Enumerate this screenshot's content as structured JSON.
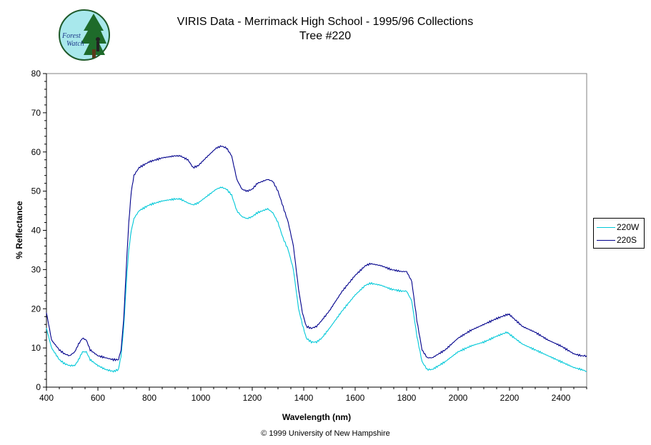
{
  "logo": {
    "text_line1": "Forest",
    "text_line2": "Watch"
  },
  "chart_data": {
    "type": "line",
    "title": "VIRIS Data - Merrimack High School - 1995/96 Collections",
    "subtitle": "Tree #220",
    "xlabel": "Wavelength (nm)",
    "ylabel": "% Reflectance",
    "xlim": [
      400,
      2500
    ],
    "ylim": [
      0,
      80
    ],
    "xticks": [
      400,
      600,
      800,
      1000,
      1200,
      1400,
      1600,
      1800,
      2000,
      2200,
      2400
    ],
    "yticks": [
      0,
      10,
      20,
      30,
      40,
      50,
      60,
      70,
      80
    ],
    "grid": false,
    "legend": "right",
    "series": [
      {
        "name": "220W",
        "color": "#00c8d8",
        "x": [
          400,
          420,
          450,
          470,
          490,
          510,
          525,
          540,
          555,
          570,
          600,
          630,
          660,
          680,
          690,
          700,
          710,
          720,
          730,
          740,
          760,
          800,
          850,
          900,
          920,
          950,
          970,
          990,
          1020,
          1060,
          1080,
          1100,
          1120,
          1140,
          1160,
          1180,
          1200,
          1220,
          1240,
          1260,
          1280,
          1300,
          1320,
          1340,
          1360,
          1380,
          1395,
          1410,
          1430,
          1450,
          1470,
          1500,
          1550,
          1600,
          1640,
          1660,
          1700,
          1740,
          1780,
          1800,
          1820,
          1840,
          1860,
          1880,
          1900,
          1950,
          2000,
          2050,
          2100,
          2150,
          2190,
          2200,
          2250,
          2300,
          2350,
          2400,
          2450,
          2480,
          2500
        ],
        "values": [
          15,
          10,
          7,
          6,
          5.5,
          5.5,
          7,
          9,
          9,
          7,
          5.5,
          4.5,
          4,
          4.5,
          8,
          15,
          26,
          35,
          40,
          43,
          45,
          46.5,
          47.5,
          48,
          48,
          47,
          46.5,
          47,
          48.5,
          50.5,
          51,
          50.5,
          49,
          45,
          43.5,
          43,
          43.5,
          44.5,
          45,
          45.5,
          44.5,
          42,
          38,
          35,
          30,
          20,
          16,
          12.5,
          11.5,
          11.5,
          12.5,
          15,
          19.5,
          23.5,
          26,
          26.5,
          26,
          25,
          24.5,
          24.5,
          22,
          13,
          6.5,
          4.5,
          4.5,
          6.5,
          9,
          10.5,
          11.5,
          13,
          14,
          13.5,
          11,
          9.5,
          8,
          6.5,
          5,
          4.5,
          4
        ]
      },
      {
        "name": "220S",
        "color": "#00008b",
        "x": [
          400,
          420,
          450,
          470,
          490,
          510,
          525,
          540,
          555,
          570,
          600,
          630,
          660,
          680,
          690,
          700,
          710,
          720,
          730,
          740,
          760,
          800,
          850,
          900,
          920,
          950,
          970,
          990,
          1020,
          1060,
          1080,
          1100,
          1120,
          1140,
          1160,
          1180,
          1200,
          1220,
          1240,
          1260,
          1280,
          1300,
          1320,
          1340,
          1360,
          1380,
          1395,
          1410,
          1430,
          1450,
          1470,
          1500,
          1550,
          1600,
          1640,
          1660,
          1700,
          1740,
          1780,
          1800,
          1820,
          1840,
          1860,
          1880,
          1900,
          1950,
          2000,
          2050,
          2100,
          2150,
          2190,
          2200,
          2250,
          2300,
          2350,
          2400,
          2450,
          2480,
          2500
        ],
        "values": [
          19,
          12,
          9.5,
          8.5,
          8,
          9,
          11,
          12.5,
          12,
          9.5,
          8,
          7.5,
          7,
          7,
          9.5,
          17,
          30,
          42,
          50,
          54,
          56,
          57.5,
          58.5,
          59,
          59,
          58,
          56,
          56.5,
          58.5,
          61,
          61.5,
          61,
          59,
          53,
          50.5,
          50,
          50.5,
          52,
          52.5,
          53,
          52.5,
          50,
          46,
          42,
          36,
          25,
          19,
          15.5,
          15,
          15.5,
          17,
          19.5,
          24.5,
          28.5,
          31,
          31.5,
          31,
          30,
          29.5,
          29.5,
          27,
          17,
          9.5,
          7.5,
          7.5,
          9.5,
          12.5,
          14.5,
          16,
          17.5,
          18.5,
          18.5,
          15.5,
          14,
          12,
          10.5,
          8.5,
          8,
          8
        ]
      }
    ]
  },
  "footer": {
    "copyright": "© 1999 University of New Hampshire"
  }
}
